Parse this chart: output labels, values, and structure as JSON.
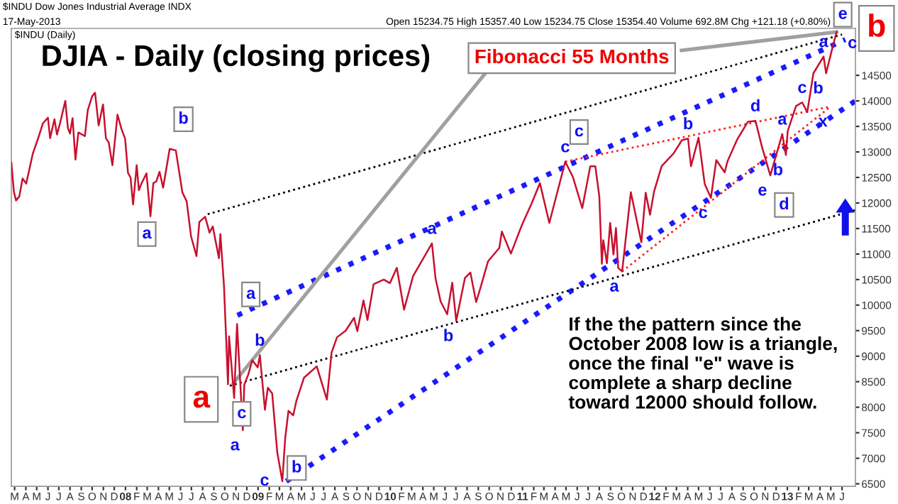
{
  "chart_data": {
    "type": "line",
    "title": "DJIA - Daily (closing prices)",
    "series": [
      {
        "color": "#c8102e",
        "line_style": "solid",
        "x": [
          "2007-02-20",
          "2007-02-27",
          "2007-03-05",
          "2007-03-14",
          "2007-03-23",
          "2007-04-02",
          "2007-04-20",
          "2007-05-07",
          "2007-05-18",
          "2007-06-01",
          "2007-06-07",
          "2007-06-19",
          "2007-06-26",
          "2007-07-05",
          "2007-07-19",
          "2007-07-26",
          "2007-08-01",
          "2007-08-08",
          "2007-08-16",
          "2007-08-24",
          "2007-09-11",
          "2007-09-19",
          "2007-10-01",
          "2007-10-09",
          "2007-10-19",
          "2007-10-31",
          "2007-11-08",
          "2007-11-16",
          "2007-11-26",
          "2007-12-10",
          "2007-12-21",
          "2007-12-31",
          "2008-01-08",
          "2008-01-15",
          "2008-01-22",
          "2008-02-01",
          "2008-02-07",
          "2008-02-14",
          "2008-02-28",
          "2008-03-10",
          "2008-03-18",
          "2008-03-26",
          "2008-04-04",
          "2008-04-14",
          "2008-05-02",
          "2008-05-19",
          "2008-06-06",
          "2008-06-18",
          "2008-06-30",
          "2008-07-15",
          "2008-07-23",
          "2008-08-08",
          "2008-08-20",
          "2008-08-29",
          "2008-09-15",
          "2008-09-19",
          "2008-09-29",
          "2008-10-10",
          "2008-10-13",
          "2008-10-27",
          "2008-11-04",
          "2008-11-20",
          "2008-11-24",
          "2008-12-05",
          "2008-12-16",
          "2008-12-31",
          "2009-01-06",
          "2009-01-20",
          "2009-01-28",
          "2009-02-09",
          "2009-02-23",
          "2009-03-09",
          "2009-03-17",
          "2009-03-26",
          "2009-04-08",
          "2009-04-17",
          "2009-05-08",
          "2009-06-12",
          "2009-07-10",
          "2009-07-23",
          "2009-08-07",
          "2009-08-31",
          "2009-09-23",
          "2009-10-02",
          "2009-10-19",
          "2009-10-30",
          "2009-11-16",
          "2009-12-14",
          "2009-12-31",
          "2010-01-19",
          "2010-02-08",
          "2010-03-05",
          "2010-04-26",
          "2010-05-06",
          "2010-05-20",
          "2010-06-07",
          "2010-06-21",
          "2010-07-02",
          "2010-07-26",
          "2010-08-10",
          "2010-08-26",
          "2010-09-07",
          "2010-09-28",
          "2010-10-29",
          "2010-11-05",
          "2010-11-30",
          "2010-12-31",
          "2011-01-26",
          "2011-02-18",
          "2011-03-16",
          "2011-04-29",
          "2011-05-20",
          "2011-06-15",
          "2011-07-07",
          "2011-07-21",
          "2011-08-01",
          "2011-08-08",
          "2011-08-12",
          "2011-08-22",
          "2011-08-31",
          "2011-09-09",
          "2011-09-16",
          "2011-09-22",
          "2011-10-03",
          "2011-10-27",
          "2011-11-25",
          "2011-12-07",
          "2011-12-19",
          "2011-12-30",
          "2012-01-20",
          "2012-02-22",
          "2012-03-16",
          "2012-04-02",
          "2012-04-10",
          "2012-05-01",
          "2012-05-18",
          "2012-06-04",
          "2012-06-19",
          "2012-07-12",
          "2012-07-20",
          "2012-08-16",
          "2012-09-14",
          "2012-10-05",
          "2012-10-23",
          "2012-11-15",
          "2012-12-05",
          "2012-12-18",
          "2012-12-28",
          "2013-01-02",
          "2013-01-25",
          "2013-02-11",
          "2013-02-25",
          "2013-03-14",
          "2013-04-11",
          "2013-04-18",
          "2013-05-03",
          "2013-05-17"
        ],
        "values": [
          12790,
          12220,
          12050,
          12130,
          12480,
          12380,
          12960,
          13310,
          13560,
          13670,
          13270,
          13640,
          13340,
          13580,
          14000,
          13470,
          13360,
          13660,
          12850,
          13380,
          13310,
          13820,
          14090,
          14160,
          13520,
          13930,
          13270,
          13180,
          12740,
          13730,
          13450,
          13260,
          12590,
          12500,
          11970,
          12740,
          12250,
          12380,
          12580,
          11740,
          12390,
          12420,
          12610,
          12300,
          13060,
          13030,
          12210,
          12030,
          11350,
          10960,
          11630,
          11730,
          11420,
          11540,
          10920,
          11390,
          10370,
          8450,
          9390,
          8180,
          9630,
          7550,
          8440,
          8640,
          8920,
          8780,
          9020,
          7950,
          8380,
          8270,
          7120,
          6550,
          7400,
          7930,
          7840,
          8130,
          8580,
          8800,
          8150,
          9070,
          9370,
          9500,
          9750,
          9490,
          10090,
          9710,
          10410,
          10500,
          10430,
          10730,
          9910,
          10570,
          11210,
          10520,
          10070,
          9820,
          10440,
          9690,
          10530,
          10640,
          10060,
          10340,
          10860,
          11120,
          11440,
          11010,
          11580,
          11990,
          12390,
          11610,
          12810,
          12510,
          11900,
          12720,
          12720,
          12130,
          10810,
          11270,
          10820,
          11610,
          10990,
          11510,
          10730,
          10660,
          12210,
          11230,
          12200,
          11770,
          12220,
          12720,
          12970,
          13230,
          13260,
          12720,
          13280,
          12370,
          12100,
          12840,
          12600,
          12820,
          13250,
          13590,
          13610,
          13100,
          12540,
          13030,
          13350,
          12940,
          13410,
          13900,
          13970,
          13780,
          14540,
          14870,
          14540,
          14970,
          15350
        ]
      },
      {
        "color": "#1a1aff",
        "line_style": "dotted",
        "x": [
          "2008-11-05",
          "2013-06-10"
        ],
        "values": [
          9800,
          15200
        ]
      },
      {
        "color": "#1a1aff",
        "line_style": "dotted",
        "x": [
          "2009-03-20",
          "2013-07-08"
        ],
        "values": [
          6550,
          14000
        ]
      },
      {
        "color": "#000000",
        "line_style": "dotted",
        "x": [
          "2008-08-15",
          "2013-06-01"
        ],
        "values": [
          11780,
          15300
        ]
      },
      {
        "color": "#000000",
        "line_style": "dotted",
        "x": [
          "2008-10-15",
          "2013-07-08"
        ],
        "values": [
          8420,
          11860
        ]
      },
      {
        "color": "#ff2020",
        "line_style": "dotted",
        "x": [
          "2011-04-29",
          "2013-05-01"
        ],
        "values": [
          12810,
          13890
        ]
      },
      {
        "color": "#ff2020",
        "line_style": "dotted",
        "x": [
          "2011-10-03",
          "2013-05-01"
        ],
        "values": [
          10660,
          13890
        ]
      },
      {
        "color": "#a0a0a0",
        "line_style": "solid",
        "x": [
          "2008-10-25",
          "2010-09-25"
        ],
        "values": [
          8470,
          14580
        ]
      },
      {
        "color": "#a0a0a0",
        "line_style": "solid",
        "x": [
          "2012-03-15",
          "2013-05-17"
        ],
        "values": [
          14990,
          15350
        ]
      }
    ],
    "xlim": [
      "2007-02-20",
      "2013-07-08"
    ],
    "xticks": [
      {
        "value": "2007-03-01",
        "label": "M"
      },
      {
        "value": "2007-04-01",
        "label": "A"
      },
      {
        "value": "2007-05-01",
        "label": "M"
      },
      {
        "value": "2007-06-01",
        "label": "J"
      },
      {
        "value": "2007-07-01",
        "label": "J"
      },
      {
        "value": "2007-08-01",
        "label": "A"
      },
      {
        "value": "2007-09-01",
        "label": "S"
      },
      {
        "value": "2007-10-01",
        "label": "O"
      },
      {
        "value": "2007-11-01",
        "label": "N"
      },
      {
        "value": "2007-12-01",
        "label": "D"
      },
      {
        "value": "2008-01-01",
        "label": "08"
      },
      {
        "value": "2008-02-01",
        "label": "F"
      },
      {
        "value": "2008-03-01",
        "label": "M"
      },
      {
        "value": "2008-04-01",
        "label": "A"
      },
      {
        "value": "2008-05-01",
        "label": "M"
      },
      {
        "value": "2008-06-01",
        "label": "J"
      },
      {
        "value": "2008-07-01",
        "label": "J"
      },
      {
        "value": "2008-08-01",
        "label": "A"
      },
      {
        "value": "2008-09-01",
        "label": "S"
      },
      {
        "value": "2008-10-01",
        "label": "O"
      },
      {
        "value": "2008-11-01",
        "label": "N"
      },
      {
        "value": "2008-12-01",
        "label": "D"
      },
      {
        "value": "2009-01-01",
        "label": "09"
      },
      {
        "value": "2009-02-01",
        "label": "F"
      },
      {
        "value": "2009-03-01",
        "label": "M"
      },
      {
        "value": "2009-04-01",
        "label": "A"
      },
      {
        "value": "2009-05-01",
        "label": "M"
      },
      {
        "value": "2009-06-01",
        "label": "J"
      },
      {
        "value": "2009-07-01",
        "label": "J"
      },
      {
        "value": "2009-08-01",
        "label": "A"
      },
      {
        "value": "2009-09-01",
        "label": "S"
      },
      {
        "value": "2009-10-01",
        "label": "O"
      },
      {
        "value": "2009-11-01",
        "label": "N"
      },
      {
        "value": "2009-12-01",
        "label": "D"
      },
      {
        "value": "2010-01-01",
        "label": "10"
      },
      {
        "value": "2010-02-01",
        "label": "F"
      },
      {
        "value": "2010-03-01",
        "label": "M"
      },
      {
        "value": "2010-04-01",
        "label": "A"
      },
      {
        "value": "2010-05-01",
        "label": "M"
      },
      {
        "value": "2010-06-01",
        "label": "J"
      },
      {
        "value": "2010-07-01",
        "label": "J"
      },
      {
        "value": "2010-08-01",
        "label": "A"
      },
      {
        "value": "2010-09-01",
        "label": "S"
      },
      {
        "value": "2010-10-01",
        "label": "O"
      },
      {
        "value": "2010-11-01",
        "label": "N"
      },
      {
        "value": "2010-12-01",
        "label": "D"
      },
      {
        "value": "2011-01-01",
        "label": "11"
      },
      {
        "value": "2011-02-01",
        "label": "F"
      },
      {
        "value": "2011-03-01",
        "label": "M"
      },
      {
        "value": "2011-04-01",
        "label": "A"
      },
      {
        "value": "2011-05-01",
        "label": "M"
      },
      {
        "value": "2011-06-01",
        "label": "J"
      },
      {
        "value": "2011-07-01",
        "label": "J"
      },
      {
        "value": "2011-08-01",
        "label": "A"
      },
      {
        "value": "2011-09-01",
        "label": "S"
      },
      {
        "value": "2011-10-01",
        "label": "O"
      },
      {
        "value": "2011-11-01",
        "label": "N"
      },
      {
        "value": "2011-12-01",
        "label": "D"
      },
      {
        "value": "2012-01-01",
        "label": "12"
      },
      {
        "value": "2012-02-01",
        "label": "F"
      },
      {
        "value": "2012-03-01",
        "label": "M"
      },
      {
        "value": "2012-04-01",
        "label": "A"
      },
      {
        "value": "2012-05-01",
        "label": "M"
      },
      {
        "value": "2012-06-01",
        "label": "J"
      },
      {
        "value": "2012-07-01",
        "label": "J"
      },
      {
        "value": "2012-08-01",
        "label": "A"
      },
      {
        "value": "2012-09-01",
        "label": "S"
      },
      {
        "value": "2012-10-01",
        "label": "O"
      },
      {
        "value": "2012-11-01",
        "label": "N"
      },
      {
        "value": "2012-12-01",
        "label": "D"
      },
      {
        "value": "2013-01-01",
        "label": "13"
      },
      {
        "value": "2013-02-01",
        "label": "F"
      },
      {
        "value": "2013-03-01",
        "label": "M"
      },
      {
        "value": "2013-04-01",
        "label": "A"
      },
      {
        "value": "2013-05-01",
        "label": "M"
      },
      {
        "value": "2013-06-01",
        "label": "J"
      }
    ],
    "ylim": [
      6450,
      15420
    ],
    "yticks": [
      6500,
      7000,
      7500,
      8000,
      8500,
      9000,
      9500,
      10000,
      10500,
      11000,
      11500,
      12000,
      12500,
      13000,
      13500,
      14000,
      14500
    ],
    "grid": false,
    "legend": false,
    "marker": "none",
    "annotations": [
      "$INDU Dow Jones Industrial Average INDX",
      "17-May-2013",
      "Open 15234.75 High 15357.40 Low 15234.75 Close 15354.40 Volume 692.8M Chg +121.18 (+0.80%)",
      "$INDU (Daily)",
      "Fibonacci 55 Months",
      "If the the pattern since the\nOctober 2008 low is a triangle,\nonce the final \"e\" wave is\ncomplete a sharp decline\ntoward 12000 should follow.",
      "e",
      "b",
      {
        "text": "a",
        "x": "2008-01-22",
        "y": 11970
      },
      {
        "text": "b",
        "x": "2008-05-02",
        "y": 13060
      },
      {
        "text": "a",
        "x": "2008-11-04",
        "y": 9630
      },
      {
        "text": "b",
        "x": "2009-01-06",
        "y": 9020
      },
      "a",
      {
        "text": "c",
        "x": "2008-10-10",
        "y": 8450
      },
      {
        "text": "a",
        "x": "2008-11-20",
        "y": 7550
      },
      {
        "text": "c",
        "x": "2009-03-09",
        "y": 6550
      },
      "b",
      {
        "text": "a",
        "x": "2010-04-26",
        "y": 11210
      },
      {
        "text": "b",
        "x": "2010-07-02",
        "y": 9690
      },
      {
        "text": "c",
        "x": "2011-04-29",
        "y": 12810
      },
      {
        "text": "c",
        "x": "2011-04-29",
        "y": 12810
      },
      {
        "text": "a",
        "x": "2011-10-03",
        "y": 10660
      },
      {
        "text": "b",
        "x": "2012-04-02",
        "y": 13260
      },
      {
        "text": "c",
        "x": "2012-06-04",
        "y": 12100
      },
      {
        "text": "d",
        "x": "2012-10-05",
        "y": 13610
      },
      {
        "text": "a",
        "x": "2012-12-18",
        "y": 13350
      },
      {
        "text": "e",
        "x": "2012-11-15",
        "y": 12540
      },
      {
        "text": "d",
        "x": "2012-11-15",
        "y": 12540
      },
      {
        "text": "b",
        "x": "2012-12-28",
        "y": 12940
      },
      {
        "text": "x",
        "x": "2013-05-01",
        "y": 13890
      },
      {
        "text": "c",
        "x": "2013-02-11",
        "y": 13970
      },
      {
        "text": "a",
        "x": "2013-04-11",
        "y": 14870
      },
      {
        "text": "b",
        "x": "2013-04-18",
        "y": 14540
      },
      {
        "text": "c",
        "x": "2013-05-17",
        "y": 15350
      }
    ]
  }
}
